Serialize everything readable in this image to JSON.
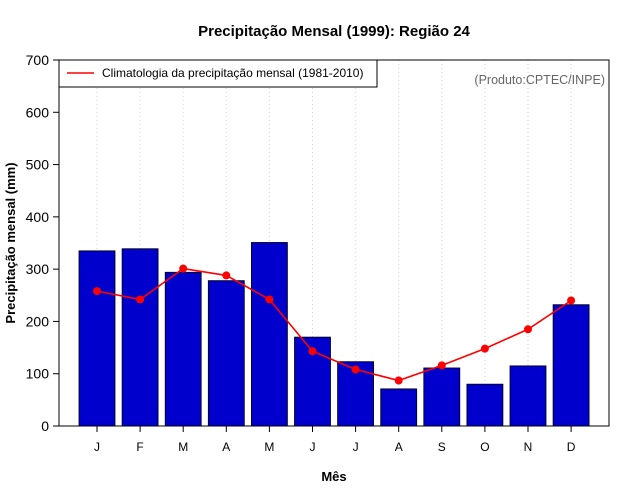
{
  "chart_data": {
    "type": "bar",
    "title": "Precipitação Mensal (1999): Região 24",
    "xlabel": "Mês",
    "ylabel": "Precipitação mensal (mm)",
    "ylim": [
      0,
      700
    ],
    "yticks": [
      0,
      100,
      200,
      300,
      400,
      500,
      600,
      700
    ],
    "categories": [
      "J",
      "F",
      "M",
      "A",
      "M",
      "J",
      "J",
      "A",
      "S",
      "O",
      "N",
      "D"
    ],
    "series": [
      {
        "name": "Precipitação mensal (1999)",
        "type": "bar",
        "color": "#0000cc",
        "values": [
          335,
          339,
          294,
          278,
          351,
          170,
          123,
          71,
          111,
          80,
          115,
          232
        ]
      },
      {
        "name": "Climatologia da precipitação mensal (1981-2010)",
        "type": "line",
        "color": "#ff0000",
        "values": [
          258,
          242,
          301,
          288,
          242,
          143,
          108,
          87,
          116,
          148,
          185,
          240
        ]
      }
    ],
    "legend": {
      "position": "top-left",
      "entries": [
        "Climatologia da precipitação mensal (1981-2010)"
      ]
    },
    "annotation": "(Produto:CPTEC/INPE)",
    "grid": "vertical-dotted"
  }
}
